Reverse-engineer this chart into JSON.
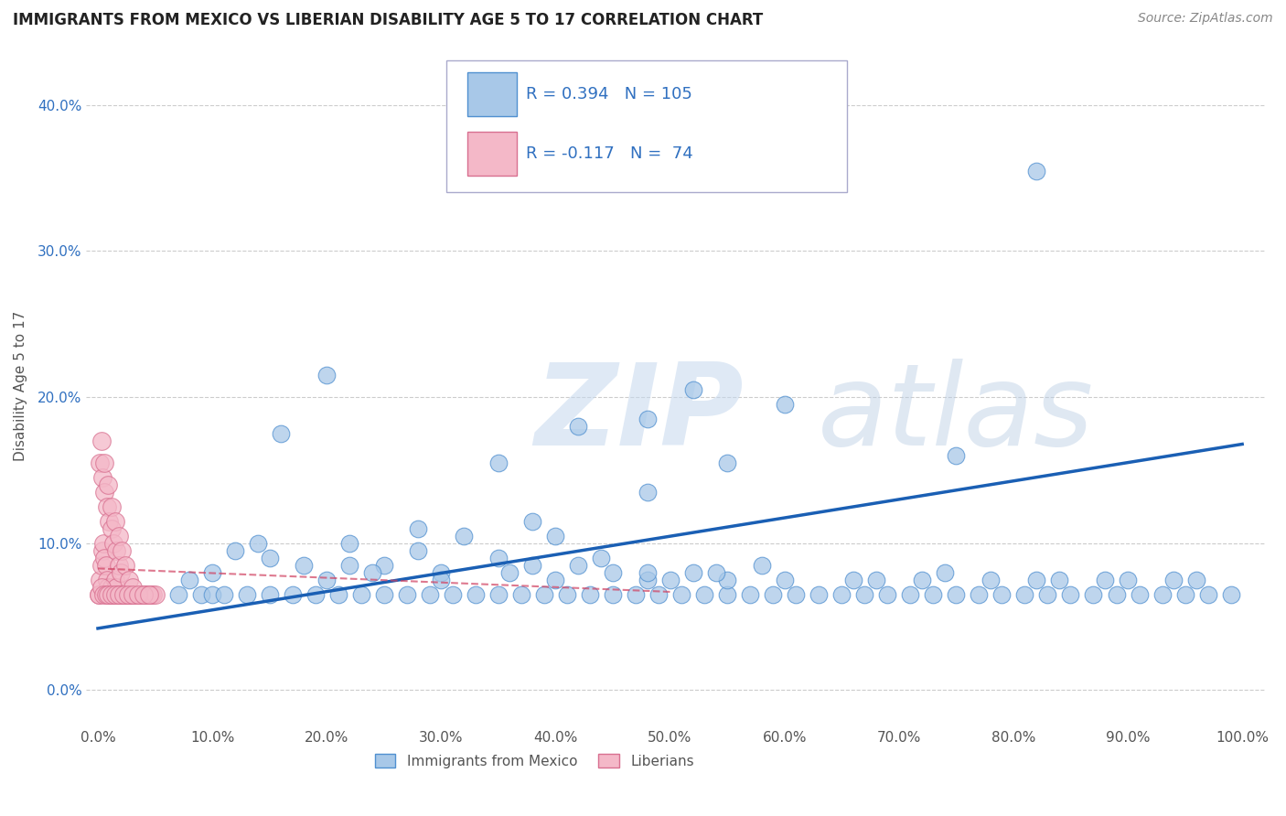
{
  "title": "IMMIGRANTS FROM MEXICO VS LIBERIAN DISABILITY AGE 5 TO 17 CORRELATION CHART",
  "source": "Source: ZipAtlas.com",
  "ylabel": "Disability Age 5 to 17",
  "legend_label1": "Immigrants from Mexico",
  "legend_label2": "Liberians",
  "R1": 0.394,
  "N1": 105,
  "R2": -0.117,
  "N2": 74,
  "watermark": "ZIPatlas",
  "xlim": [
    -0.01,
    1.02
  ],
  "ylim": [
    -0.025,
    0.44
  ],
  "xticks": [
    0.0,
    0.1,
    0.2,
    0.3,
    0.4,
    0.5,
    0.6,
    0.7,
    0.8,
    0.9,
    1.0
  ],
  "yticks": [
    0.0,
    0.1,
    0.2,
    0.3,
    0.4
  ],
  "color_blue": "#a8c8e8",
  "color_blue_edge": "#5090d0",
  "color_blue_line": "#1a5fb4",
  "color_pink": "#f4b8c8",
  "color_pink_edge": "#d87090",
  "color_pink_line": "#d04060",
  "color_text_blue": "#3070c0",
  "color_text_axis": "#555555",
  "background": "#ffffff",
  "blue_x": [
    0.07,
    0.09,
    0.1,
    0.11,
    0.13,
    0.15,
    0.17,
    0.19,
    0.21,
    0.23,
    0.25,
    0.27,
    0.29,
    0.31,
    0.33,
    0.35,
    0.37,
    0.39,
    0.41,
    0.43,
    0.45,
    0.47,
    0.49,
    0.51,
    0.53,
    0.55,
    0.57,
    0.59,
    0.61,
    0.63,
    0.65,
    0.67,
    0.69,
    0.71,
    0.73,
    0.75,
    0.77,
    0.79,
    0.81,
    0.83,
    0.85,
    0.87,
    0.89,
    0.91,
    0.93,
    0.95,
    0.97,
    0.99,
    0.1,
    0.15,
    0.2,
    0.25,
    0.3,
    0.35,
    0.4,
    0.45,
    0.5,
    0.55,
    0.12,
    0.18,
    0.24,
    0.3,
    0.36,
    0.42,
    0.48,
    0.54,
    0.6,
    0.66,
    0.72,
    0.78,
    0.84,
    0.9,
    0.96,
    0.08,
    0.14,
    0.22,
    0.28,
    0.38,
    0.44,
    0.52,
    0.58,
    0.68,
    0.74,
    0.82,
    0.88,
    0.94,
    0.52,
    0.48,
    0.82,
    0.35,
    0.42,
    0.6,
    0.75,
    0.55,
    0.48,
    0.38,
    0.28,
    0.32,
    0.22,
    0.4,
    0.48,
    0.16,
    0.2
  ],
  "blue_y": [
    0.065,
    0.065,
    0.065,
    0.065,
    0.065,
    0.065,
    0.065,
    0.065,
    0.065,
    0.065,
    0.065,
    0.065,
    0.065,
    0.065,
    0.065,
    0.065,
    0.065,
    0.065,
    0.065,
    0.065,
    0.065,
    0.065,
    0.065,
    0.065,
    0.065,
    0.065,
    0.065,
    0.065,
    0.065,
    0.065,
    0.065,
    0.065,
    0.065,
    0.065,
    0.065,
    0.065,
    0.065,
    0.065,
    0.065,
    0.065,
    0.065,
    0.065,
    0.065,
    0.065,
    0.065,
    0.065,
    0.065,
    0.065,
    0.08,
    0.09,
    0.075,
    0.085,
    0.08,
    0.09,
    0.075,
    0.08,
    0.075,
    0.075,
    0.095,
    0.085,
    0.08,
    0.075,
    0.08,
    0.085,
    0.075,
    0.08,
    0.075,
    0.075,
    0.075,
    0.075,
    0.075,
    0.075,
    0.075,
    0.075,
    0.1,
    0.085,
    0.095,
    0.085,
    0.09,
    0.08,
    0.085,
    0.075,
    0.08,
    0.075,
    0.075,
    0.075,
    0.205,
    0.185,
    0.355,
    0.155,
    0.18,
    0.195,
    0.16,
    0.155,
    0.135,
    0.115,
    0.11,
    0.105,
    0.1,
    0.105,
    0.08,
    0.175,
    0.215
  ],
  "pink_x": [
    0.001,
    0.002,
    0.003,
    0.004,
    0.005,
    0.006,
    0.007,
    0.008,
    0.009,
    0.01,
    0.011,
    0.012,
    0.013,
    0.014,
    0.015,
    0.016,
    0.017,
    0.018,
    0.019,
    0.02,
    0.021,
    0.022,
    0.023,
    0.024,
    0.025,
    0.026,
    0.027,
    0.028,
    0.029,
    0.03,
    0.032,
    0.034,
    0.036,
    0.038,
    0.04,
    0.042,
    0.044,
    0.046,
    0.048,
    0.05,
    0.002,
    0.004,
    0.006,
    0.008,
    0.01,
    0.012,
    0.014,
    0.016,
    0.018,
    0.02,
    0.003,
    0.006,
    0.009,
    0.012,
    0.015,
    0.018,
    0.021,
    0.024,
    0.027,
    0.03,
    0.001,
    0.003,
    0.005,
    0.007,
    0.009,
    0.012,
    0.015,
    0.018,
    0.022,
    0.026,
    0.03,
    0.035,
    0.04,
    0.045
  ],
  "pink_y": [
    0.065,
    0.075,
    0.085,
    0.095,
    0.1,
    0.09,
    0.085,
    0.075,
    0.07,
    0.065,
    0.065,
    0.07,
    0.065,
    0.065,
    0.075,
    0.07,
    0.065,
    0.065,
    0.065,
    0.065,
    0.065,
    0.065,
    0.065,
    0.065,
    0.065,
    0.065,
    0.065,
    0.065,
    0.065,
    0.065,
    0.065,
    0.065,
    0.065,
    0.065,
    0.065,
    0.065,
    0.065,
    0.065,
    0.065,
    0.065,
    0.155,
    0.145,
    0.135,
    0.125,
    0.115,
    0.11,
    0.1,
    0.095,
    0.085,
    0.08,
    0.17,
    0.155,
    0.14,
    0.125,
    0.115,
    0.105,
    0.095,
    0.085,
    0.075,
    0.07,
    0.065,
    0.07,
    0.065,
    0.065,
    0.065,
    0.065,
    0.065,
    0.065,
    0.065,
    0.065,
    0.065,
    0.065,
    0.065,
    0.065
  ],
  "blue_trend_x": [
    0.0,
    1.0
  ],
  "blue_trend_y": [
    0.042,
    0.168
  ],
  "pink_trend_x": [
    0.0,
    0.5
  ],
  "pink_trend_y": [
    0.083,
    0.067
  ]
}
